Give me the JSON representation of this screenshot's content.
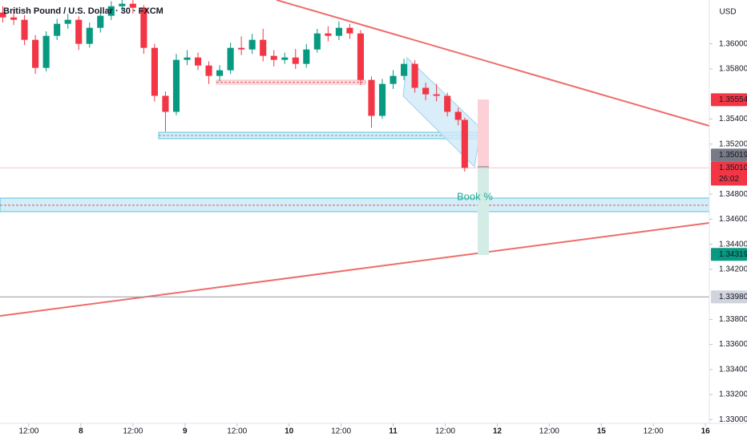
{
  "chart_data": {
    "type": "candlestick",
    "title": "British Pound / U.S. Dollar · 30 · FXCM",
    "currency": "USD",
    "annotation": "Book %",
    "up_color": "#089981",
    "down_color": "#f23645",
    "xlim": [
      -18.65,
      144.9
    ],
    "ylim": [
      1.3297,
      1.3635
    ],
    "xticks": [
      {
        "value": -12,
        "label": "12:00"
      },
      {
        "value": 0,
        "label": "8"
      },
      {
        "value": 12,
        "label": "12:00"
      },
      {
        "value": 24,
        "label": "9"
      },
      {
        "value": 36,
        "label": "12:00"
      },
      {
        "value": 48,
        "label": "10"
      },
      {
        "value": 60,
        "label": "12:00"
      },
      {
        "value": 72,
        "label": "11"
      },
      {
        "value": 84,
        "label": "12:00"
      },
      {
        "value": 96,
        "label": "12"
      },
      {
        "value": 108,
        "label": "12:00"
      },
      {
        "value": 120,
        "label": "15"
      },
      {
        "value": 132,
        "label": "12:00"
      },
      {
        "value": 144,
        "label": "16"
      }
    ],
    "yticks": [
      {
        "value": 1.36,
        "label": "1.36000"
      },
      {
        "value": 1.358,
        "label": "1.35800"
      },
      {
        "value": 1.354,
        "label": "1.35400"
      },
      {
        "value": 1.352,
        "label": "1.35200"
      },
      {
        "value": 1.348,
        "label": "1.34800"
      },
      {
        "value": 1.346,
        "label": "1.34600"
      },
      {
        "value": 1.344,
        "label": "1.34400"
      },
      {
        "value": 1.342,
        "label": "1.34200"
      },
      {
        "value": 1.338,
        "label": "1.33800"
      },
      {
        "value": 1.336,
        "label": "1.33600"
      },
      {
        "value": 1.334,
        "label": "1.33400"
      },
      {
        "value": 1.332,
        "label": "1.33200"
      },
      {
        "value": 1.33,
        "label": "1.33000"
      }
    ],
    "price_tags": [
      {
        "value": 1.35554,
        "label": "1.35554",
        "color": "#f23645",
        "text_color": "#ffffff"
      },
      {
        "value": 1.35019,
        "label": "1.35019",
        "color": "#787b86",
        "text_color": "#ffffff"
      },
      {
        "value": 1.3501,
        "label": "1.35010",
        "countdown": "26:02",
        "color": "#f23645",
        "text_color": "#ffffff",
        "line_color": "#f7c6cc"
      },
      {
        "value": 1.34319,
        "label": "1.34319",
        "color": "#089981",
        "text_color": "#ffffff"
      },
      {
        "value": 1.3398,
        "label": "1.33980",
        "color": "#d1d4dc",
        "text_color": "#131722",
        "line_color": "#9598a1"
      }
    ],
    "candles": {
      "x": [
        -18,
        -15.5,
        -13,
        -10.5,
        -8,
        -5.5,
        -3,
        -0.5,
        2,
        4.5,
        7,
        9.5,
        12,
        14.5,
        17,
        19.5,
        22,
        24.5,
        27,
        29.5,
        32,
        34.5,
        37,
        39.5,
        42,
        44.5,
        47,
        49.5,
        52,
        54.5,
        57,
        59.5,
        62,
        64.5,
        67,
        69.5,
        72,
        74.5,
        77,
        79.5,
        82,
        84.5,
        87,
        88.5
      ],
      "open": [
        1.3625,
        1.36211,
        1.36192,
        1.36032,
        1.35808,
        1.36064,
        1.3616,
        1.36192,
        1.36,
        1.36128,
        1.36224,
        1.363,
        1.3632,
        1.36288,
        1.35968,
        1.35585,
        1.35457,
        1.35872,
        1.35891,
        1.35827,
        1.35744,
        1.35789,
        1.35968,
        1.35955,
        1.36032,
        1.35904,
        1.35872,
        1.35891,
        1.3584,
        1.35955,
        1.36083,
        1.36064,
        1.36128,
        1.36083,
        1.35712,
        1.35425,
        1.3568,
        1.35744,
        1.3584,
        1.35649,
        1.35597,
        1.35585,
        1.35457,
        1.35393
      ],
      "high": [
        1.363,
        1.3628,
        1.3623,
        1.3607,
        1.361,
        1.362,
        1.3624,
        1.3622,
        1.3617,
        1.3626,
        1.3634,
        1.3635,
        1.3635,
        1.3631,
        1.36,
        1.3562,
        1.3592,
        1.3595,
        1.3593,
        1.3586,
        1.3583,
        1.3601,
        1.3606,
        1.3608,
        1.3612,
        1.3595,
        1.3593,
        1.3596,
        1.36,
        1.3612,
        1.3614,
        1.3618,
        1.3616,
        1.3611,
        1.3574,
        1.3572,
        1.3579,
        1.3588,
        1.3587,
        1.3569,
        1.3568,
        1.3561,
        1.3549,
        1.3541
      ],
      "low": [
        1.3617,
        1.3615,
        1.3599,
        1.3576,
        1.3578,
        1.3603,
        1.3612,
        1.3595,
        1.3597,
        1.3609,
        1.3619,
        1.3626,
        1.3624,
        1.3592,
        1.3554,
        1.353,
        1.3543,
        1.3583,
        1.3579,
        1.3568,
        1.357,
        1.3576,
        1.3591,
        1.3592,
        1.3586,
        1.3582,
        1.3584,
        1.358,
        1.3581,
        1.3593,
        1.3602,
        1.3603,
        1.3604,
        1.3567,
        1.3533,
        1.354,
        1.3564,
        1.3571,
        1.3561,
        1.3555,
        1.3554,
        1.3542,
        1.3535,
        1.3498
      ],
      "close": [
        1.36211,
        1.36192,
        1.36032,
        1.35808,
        1.36064,
        1.3616,
        1.36192,
        1.36,
        1.36128,
        1.36224,
        1.363,
        1.3632,
        1.36288,
        1.35968,
        1.35585,
        1.35457,
        1.35872,
        1.35891,
        1.35827,
        1.35744,
        1.35789,
        1.35968,
        1.35955,
        1.36032,
        1.35904,
        1.35872,
        1.35891,
        1.3584,
        1.35955,
        1.36083,
        1.36064,
        1.36128,
        1.36083,
        1.35712,
        1.35425,
        1.3568,
        1.35744,
        1.3584,
        1.35649,
        1.35597,
        1.35585,
        1.35457,
        1.35393,
        1.3501
      ]
    }
  }
}
